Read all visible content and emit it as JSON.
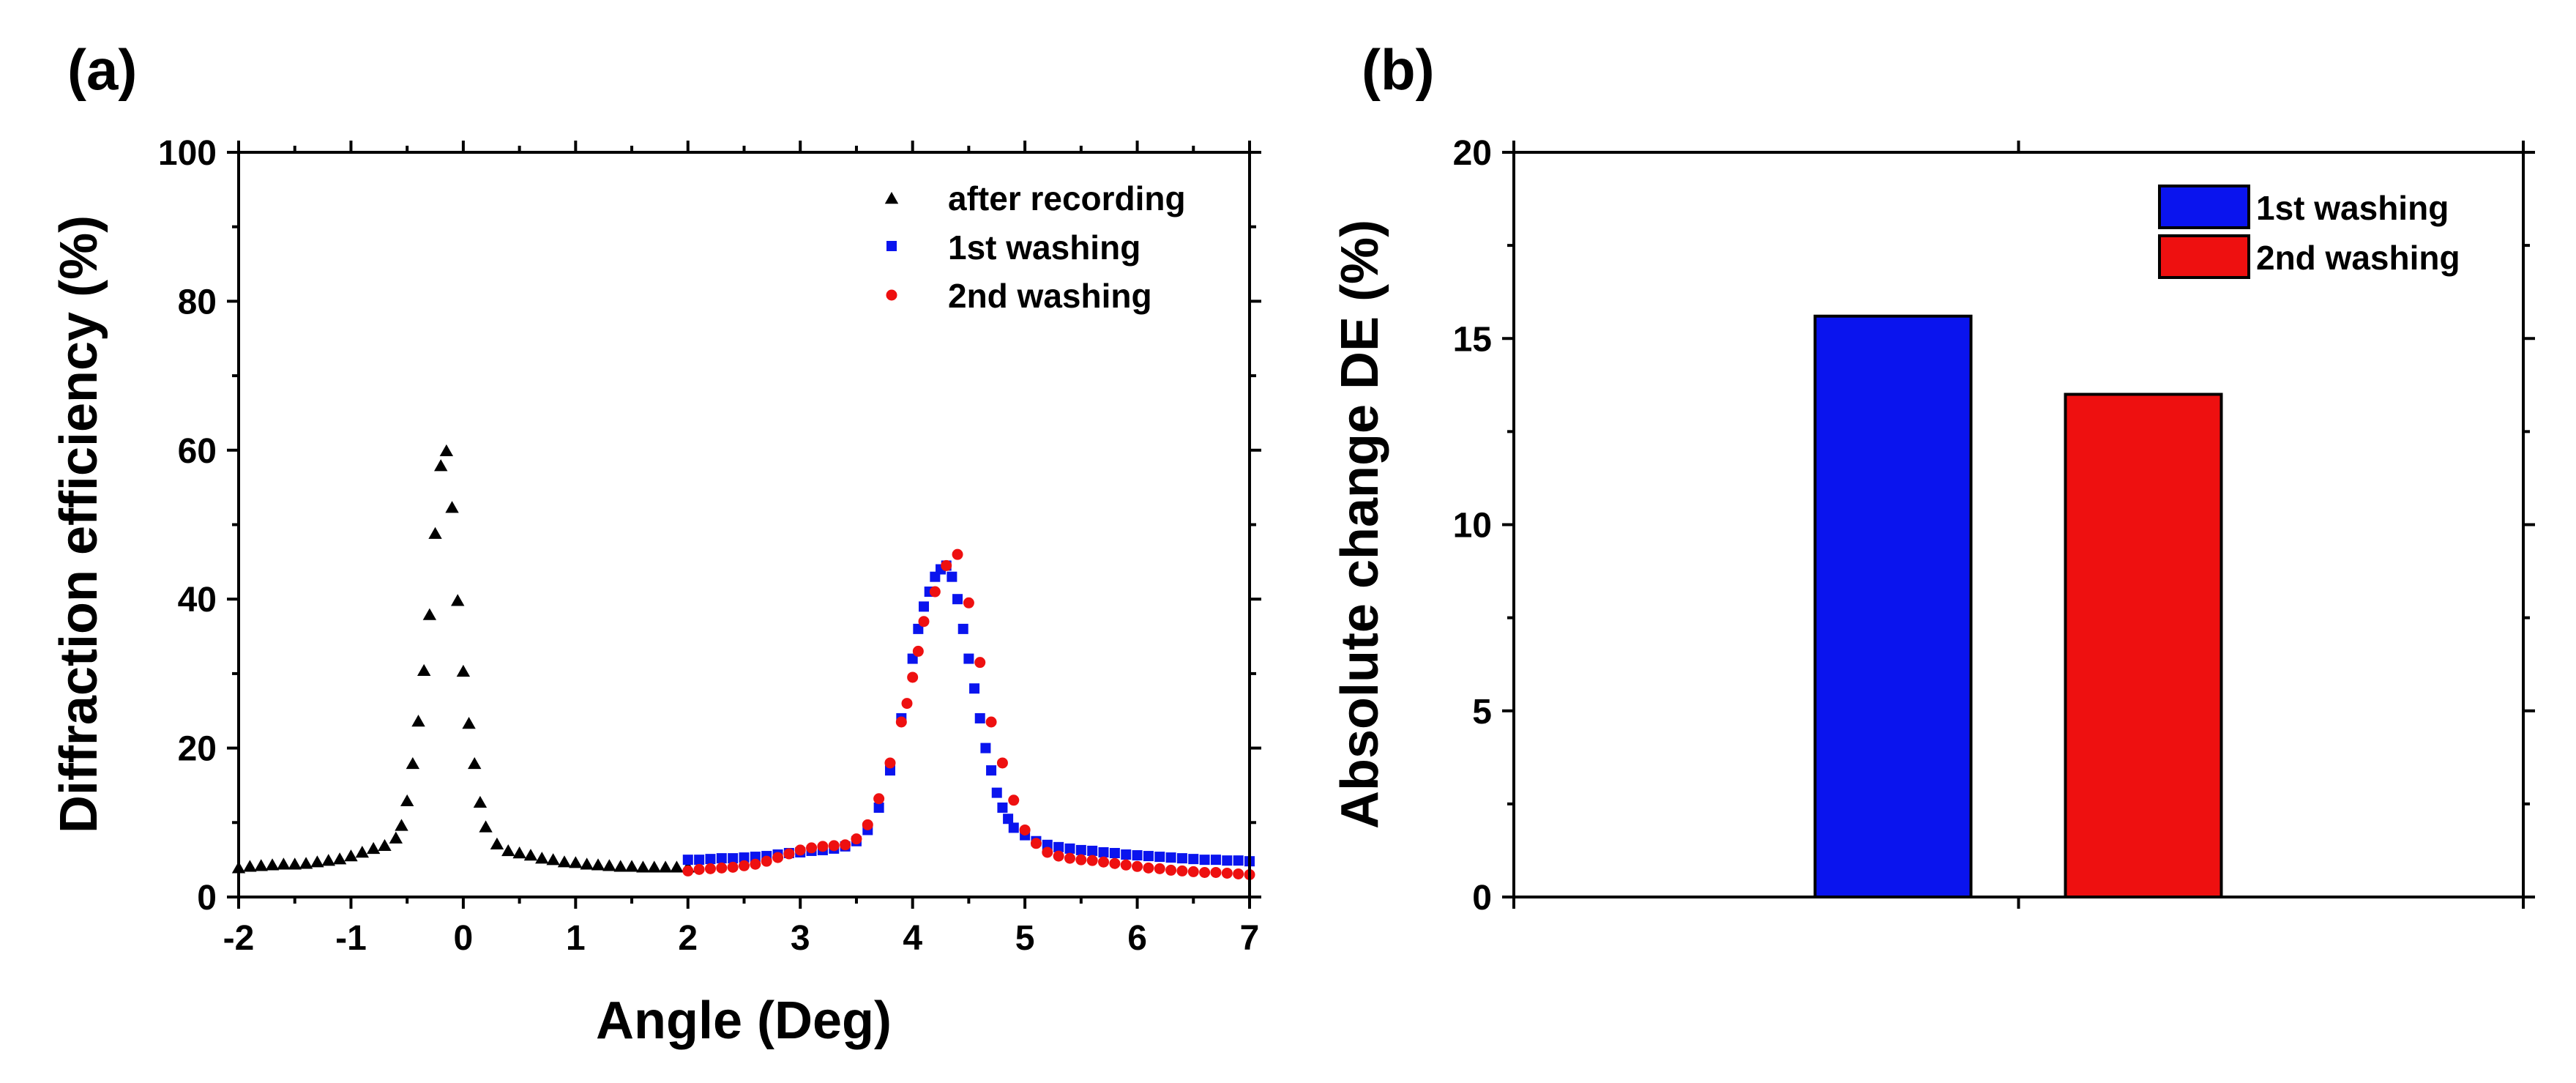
{
  "colors": {
    "after_recording": "#000000",
    "first_washing": "#0a14ee",
    "second_washing": "#ee1010"
  },
  "chart_data": [
    {
      "panel_label": "(a)",
      "type": "scatter",
      "xlabel": "Angle (Deg)",
      "ylabel": "Diffraction efficiency (%)",
      "xlim": [
        -2,
        7
      ],
      "ylim": [
        0,
        100
      ],
      "xticks": [
        -2,
        -1,
        0,
        1,
        2,
        3,
        4,
        5,
        6,
        7
      ],
      "xtick_labels": [
        "-2",
        "-1",
        "0",
        "1",
        "2",
        "3",
        "4",
        "5",
        "6",
        "7"
      ],
      "yticks": [
        0,
        20,
        40,
        60,
        80,
        100
      ],
      "ytick_labels": [
        "0",
        "20",
        "40",
        "60",
        "80",
        "100"
      ],
      "grid": false,
      "legend_position": "top-right",
      "series": [
        {
          "name": "after recording",
          "marker": "triangle",
          "points": [
            [
              -2.0,
              3.8
            ],
            [
              -1.9,
              4.0
            ],
            [
              -1.8,
              4.1
            ],
            [
              -1.7,
              4.2
            ],
            [
              -1.6,
              4.3
            ],
            [
              -1.5,
              4.3
            ],
            [
              -1.4,
              4.4
            ],
            [
              -1.3,
              4.6
            ],
            [
              -1.2,
              4.8
            ],
            [
              -1.1,
              5.0
            ],
            [
              -1.0,
              5.4
            ],
            [
              -0.9,
              5.9
            ],
            [
              -0.8,
              6.4
            ],
            [
              -0.7,
              6.8
            ],
            [
              -0.6,
              7.8
            ],
            [
              -0.55,
              9.5
            ],
            [
              -0.5,
              12.8
            ],
            [
              -0.45,
              17.8
            ],
            [
              -0.4,
              23.5
            ],
            [
              -0.35,
              30.3
            ],
            [
              -0.3,
              37.8
            ],
            [
              -0.25,
              48.7
            ],
            [
              -0.2,
              57.8
            ],
            [
              -0.15,
              59.8
            ],
            [
              -0.1,
              52.2
            ],
            [
              -0.05,
              39.7
            ],
            [
              0.0,
              30.2
            ],
            [
              0.05,
              23.2
            ],
            [
              0.1,
              17.8
            ],
            [
              0.15,
              12.6
            ],
            [
              0.2,
              9.3
            ],
            [
              0.3,
              7.0
            ],
            [
              0.4,
              6.1
            ],
            [
              0.5,
              5.8
            ],
            [
              0.6,
              5.5
            ],
            [
              0.7,
              5.1
            ],
            [
              0.8,
              4.9
            ],
            [
              0.9,
              4.6
            ],
            [
              1.0,
              4.5
            ],
            [
              1.1,
              4.3
            ],
            [
              1.2,
              4.2
            ],
            [
              1.3,
              4.1
            ],
            [
              1.4,
              4.0
            ],
            [
              1.5,
              4.0
            ],
            [
              1.6,
              3.9
            ],
            [
              1.7,
              3.9
            ],
            [
              1.8,
              3.9
            ],
            [
              1.9,
              3.9
            ],
            [
              2.0,
              3.9
            ]
          ]
        },
        {
          "name": "1st washing",
          "marker": "square",
          "points": [
            [
              2.0,
              5.0
            ],
            [
              2.1,
              5.0
            ],
            [
              2.2,
              5.1
            ],
            [
              2.3,
              5.2
            ],
            [
              2.4,
              5.2
            ],
            [
              2.5,
              5.3
            ],
            [
              2.6,
              5.4
            ],
            [
              2.7,
              5.5
            ],
            [
              2.8,
              5.7
            ],
            [
              2.9,
              5.9
            ],
            [
              3.0,
              6.0
            ],
            [
              3.1,
              6.2
            ],
            [
              3.2,
              6.3
            ],
            [
              3.3,
              6.5
            ],
            [
              3.4,
              6.8
            ],
            [
              3.5,
              7.5
            ],
            [
              3.6,
              9.0
            ],
            [
              3.7,
              12.0
            ],
            [
              3.8,
              17.0
            ],
            [
              3.9,
              24.0
            ],
            [
              4.0,
              32.0
            ],
            [
              4.05,
              36.0
            ],
            [
              4.1,
              39.0
            ],
            [
              4.15,
              41.0
            ],
            [
              4.2,
              43.0
            ],
            [
              4.25,
              44.0
            ],
            [
              4.3,
              44.5
            ],
            [
              4.35,
              43.0
            ],
            [
              4.4,
              40.0
            ],
            [
              4.45,
              36.0
            ],
            [
              4.5,
              32.0
            ],
            [
              4.55,
              28.0
            ],
            [
              4.6,
              24.0
            ],
            [
              4.65,
              20.0
            ],
            [
              4.7,
              17.0
            ],
            [
              4.75,
              14.0
            ],
            [
              4.8,
              12.0
            ],
            [
              4.85,
              10.5
            ],
            [
              4.9,
              9.3
            ],
            [
              5.0,
              8.3
            ],
            [
              5.1,
              7.5
            ],
            [
              5.2,
              7.0
            ],
            [
              5.3,
              6.7
            ],
            [
              5.4,
              6.5
            ],
            [
              5.5,
              6.3
            ],
            [
              5.6,
              6.2
            ],
            [
              5.7,
              6.0
            ],
            [
              5.8,
              5.9
            ],
            [
              5.9,
              5.7
            ],
            [
              6.0,
              5.6
            ],
            [
              6.1,
              5.5
            ],
            [
              6.2,
              5.4
            ],
            [
              6.3,
              5.3
            ],
            [
              6.4,
              5.2
            ],
            [
              6.5,
              5.1
            ],
            [
              6.6,
              5.0
            ],
            [
              6.7,
              5.0
            ],
            [
              6.8,
              4.9
            ],
            [
              6.9,
              4.9
            ],
            [
              7.0,
              4.8
            ]
          ]
        },
        {
          "name": "2nd washing",
          "marker": "circle",
          "points": [
            [
              2.0,
              3.5
            ],
            [
              2.1,
              3.7
            ],
            [
              2.2,
              3.8
            ],
            [
              2.3,
              3.9
            ],
            [
              2.4,
              4.0
            ],
            [
              2.5,
              4.2
            ],
            [
              2.6,
              4.4
            ],
            [
              2.7,
              4.8
            ],
            [
              2.8,
              5.3
            ],
            [
              2.9,
              5.8
            ],
            [
              3.0,
              6.3
            ],
            [
              3.1,
              6.6
            ],
            [
              3.2,
              6.8
            ],
            [
              3.3,
              6.9
            ],
            [
              3.4,
              7.0
            ],
            [
              3.5,
              7.8
            ],
            [
              3.6,
              9.7
            ],
            [
              3.7,
              13.2
            ],
            [
              3.8,
              18.0
            ],
            [
              3.9,
              23.5
            ],
            [
              3.95,
              26.0
            ],
            [
              4.0,
              29.5
            ],
            [
              4.05,
              33.0
            ],
            [
              4.1,
              37.0
            ],
            [
              4.2,
              41.0
            ],
            [
              4.3,
              44.5
            ],
            [
              4.4,
              46.0
            ],
            [
              4.5,
              39.5
            ],
            [
              4.6,
              31.5
            ],
            [
              4.7,
              23.5
            ],
            [
              4.8,
              18.0
            ],
            [
              4.9,
              13.0
            ],
            [
              5.0,
              9.0
            ],
            [
              5.1,
              7.2
            ],
            [
              5.2,
              6.0
            ],
            [
              5.3,
              5.5
            ],
            [
              5.4,
              5.2
            ],
            [
              5.5,
              5.0
            ],
            [
              5.6,
              4.9
            ],
            [
              5.7,
              4.7
            ],
            [
              5.8,
              4.5
            ],
            [
              5.9,
              4.3
            ],
            [
              6.0,
              4.1
            ],
            [
              6.1,
              3.9
            ],
            [
              6.2,
              3.8
            ],
            [
              6.3,
              3.6
            ],
            [
              6.4,
              3.5
            ],
            [
              6.5,
              3.4
            ],
            [
              6.6,
              3.3
            ],
            [
              6.7,
              3.3
            ],
            [
              6.8,
              3.2
            ],
            [
              6.9,
              3.1
            ],
            [
              7.0,
              3.0
            ]
          ]
        }
      ]
    },
    {
      "panel_label": "(b)",
      "type": "bar",
      "xlabel": "",
      "ylabel": "Absolute change DE (%)",
      "ylim": [
        0,
        20
      ],
      "yticks": [
        0,
        5,
        10,
        15,
        20
      ],
      "ytick_labels": [
        "0",
        "5",
        "10",
        "15",
        "20"
      ],
      "grid": false,
      "legend_position": "top-right",
      "categories": [
        "1st washing",
        "2nd washing"
      ],
      "values": [
        15.6,
        13.5
      ]
    }
  ]
}
